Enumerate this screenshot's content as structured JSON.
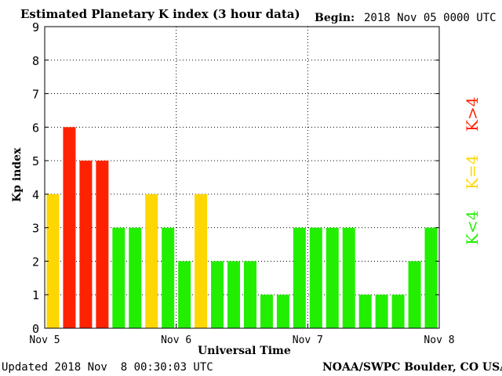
{
  "header": {
    "title": "Estimated Planetary K index (3 hour data)",
    "begin_label": "Begin:",
    "begin_value": "2018 Nov 05 0000 UTC"
  },
  "footer": {
    "updated": "Updated 2018 Nov  8 00:30:03 UTC",
    "credit": "NOAA/SWPC Boulder, CO USA"
  },
  "legend": {
    "high": "K>4",
    "equal": "K=4",
    "low": "K<4"
  },
  "colors": {
    "high": "#ff2200",
    "equal": "#ffd700",
    "low": "#22ee00"
  },
  "chart_data": {
    "type": "bar",
    "xlabel": "Universal Time",
    "ylabel": "Kp index",
    "ylim": [
      0,
      9
    ],
    "yticks": [
      "0",
      "1",
      "2",
      "3",
      "4",
      "5",
      "6",
      "7",
      "8",
      "9"
    ],
    "x_ticks": [
      "Nov 5",
      "Nov 6",
      "Nov 7",
      "Nov 8"
    ],
    "grid": true,
    "values": [
      4,
      6,
      5,
      5,
      3,
      3,
      4,
      3,
      2,
      4,
      2,
      2,
      2,
      1,
      1,
      3,
      3,
      3,
      3,
      1,
      1,
      1,
      2,
      3
    ]
  }
}
